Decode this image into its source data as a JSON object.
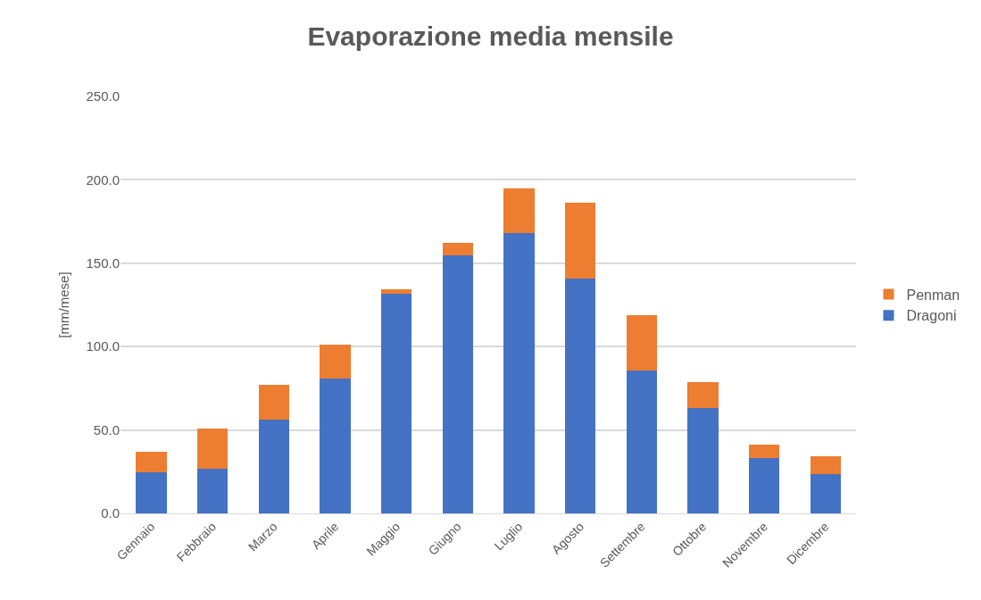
{
  "chart_data": {
    "type": "bar",
    "title": "Evaporazione media mensile",
    "ylabel": "[mm/mese]",
    "categories": [
      "Gennaio",
      "Febbraio",
      "Marzo",
      "Aprile",
      "Maggio",
      "Giugno",
      "Luglio",
      "Agosto",
      "Settembre",
      "Ottobre",
      "Novembre",
      "Dicembre"
    ],
    "series": [
      {
        "name": "Dragoni",
        "color": "#4472c4",
        "values": [
          24.6,
          26.8,
          56.1,
          80.7,
          131.8,
          154.6,
          167.9,
          140.9,
          85.9,
          63.0,
          33.2,
          23.6
        ]
      },
      {
        "name": "Penman",
        "color": "#ed7d31",
        "values": [
          12.4,
          24.1,
          21.0,
          20.6,
          2.8,
          7.4,
          26.7,
          45.4,
          33.2,
          15.9,
          7.9,
          10.7
        ]
      }
    ],
    "stacked": true,
    "ylim": [
      0,
      250
    ],
    "yticks": [
      {
        "value": 0,
        "label": "0.0"
      },
      {
        "value": 50,
        "label": "50.0"
      },
      {
        "value": 100,
        "label": "100.0"
      },
      {
        "value": 150,
        "label": "150.0"
      },
      {
        "value": 200,
        "label": "200.0"
      },
      {
        "value": 250,
        "label": "250.0"
      }
    ],
    "grid": "y",
    "legend": "right"
  }
}
